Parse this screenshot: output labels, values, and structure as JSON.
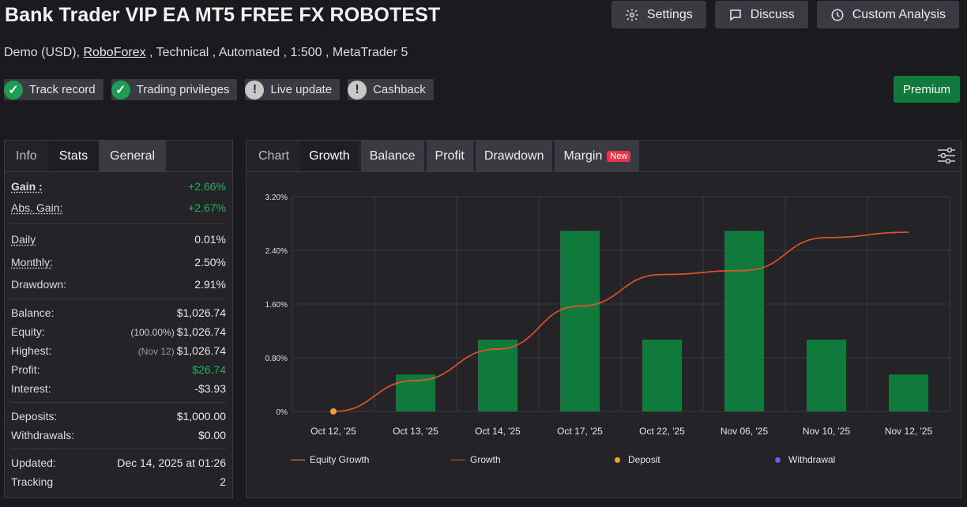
{
  "title": "Bank Trader VIP EA MT5 FREE FX ROBOTEST",
  "header_buttons": {
    "settings": "Settings",
    "discuss": "Discuss",
    "custom_analysis": "Custom Analysis"
  },
  "subtitle": {
    "prefix": "Demo (USD), ",
    "broker": "RoboForex",
    "suffix": " , Technical , Automated , 1:500 , MetaTrader 5"
  },
  "badges": [
    {
      "label": "Track record",
      "status": "ok"
    },
    {
      "label": "Trading privileges",
      "status": "ok"
    },
    {
      "label": "Live update",
      "status": "warn"
    },
    {
      "label": "Cashback",
      "status": "warn"
    }
  ],
  "premium_label": "Premium",
  "left_tabs": [
    "Info",
    "Stats",
    "General"
  ],
  "stats": {
    "gain": {
      "label": "Gain :",
      "value": "+2.66%"
    },
    "abs_gain": {
      "label": "Abs. Gain:",
      "value": "+2.67%"
    },
    "daily": {
      "label": "Daily",
      "value": "0.01%"
    },
    "monthly": {
      "label": "Monthly:",
      "value": "2.50%"
    },
    "drawdown": {
      "label": "Drawdown:",
      "value": "2.91%"
    },
    "balance": {
      "label": "Balance:",
      "value": "$1,026.74"
    },
    "equity": {
      "label": "Equity:",
      "note": "(100.00%)",
      "value": "$1,026.74"
    },
    "highest": {
      "label": "Highest:",
      "note": "(Nov 12)",
      "value": "$1,026.74"
    },
    "profit": {
      "label": "Profit:",
      "value": "$26.74"
    },
    "interest": {
      "label": "Interest:",
      "value": "-$3.93"
    },
    "deposits": {
      "label": "Deposits:",
      "value": "$1,000.00"
    },
    "withdrawals": {
      "label": "Withdrawals:",
      "value": "$0.00"
    },
    "updated": {
      "label": "Updated:",
      "value": "Dec 14, 2025 at 01:26"
    },
    "tracking": {
      "label": "Tracking",
      "value": "2"
    }
  },
  "right_tabs": {
    "chart": "Chart",
    "growth": "Growth",
    "balance": "Balance",
    "profit": "Profit",
    "drawdown": "Drawdown",
    "margin": "Margin",
    "new_tag": "New"
  },
  "colors": {
    "bar": "#0f7a3c",
    "equity_growth": "#f2a320",
    "growth": "#e8472a",
    "deposit": "#f0a030",
    "withdrawal": "#6a5cf0"
  },
  "chart_data": {
    "type": "bar",
    "categories": [
      "Oct 12, '25",
      "Oct 13, '25",
      "Oct 14, '25",
      "Oct 17, '25",
      "Oct 22, '25",
      "Nov 06, '25",
      "Nov 10, '25",
      "Nov 12, '25"
    ],
    "ylim": [
      0,
      3.2
    ],
    "yticks": [
      "0%",
      "0.80%",
      "1.60%",
      "2.40%",
      "3.20%"
    ],
    "series": [
      {
        "name": "Growth",
        "type": "bar",
        "values": [
          0,
          0.55,
          1.07,
          2.69,
          1.07,
          2.69,
          1.07,
          0.55
        ]
      },
      {
        "name": "Equity Growth",
        "type": "line",
        "values": [
          0,
          0.46,
          0.93,
          1.57,
          2.04,
          2.1,
          2.59,
          2.67
        ]
      },
      {
        "name": "Deposit",
        "type": "scatter",
        "values": [
          0
        ]
      },
      {
        "name": "Withdrawal",
        "type": "scatter",
        "values": []
      }
    ],
    "legend": [
      "Equity Growth",
      "Growth",
      "Deposit",
      "Withdrawal"
    ],
    "legend_position": "bottom",
    "grid": true
  }
}
